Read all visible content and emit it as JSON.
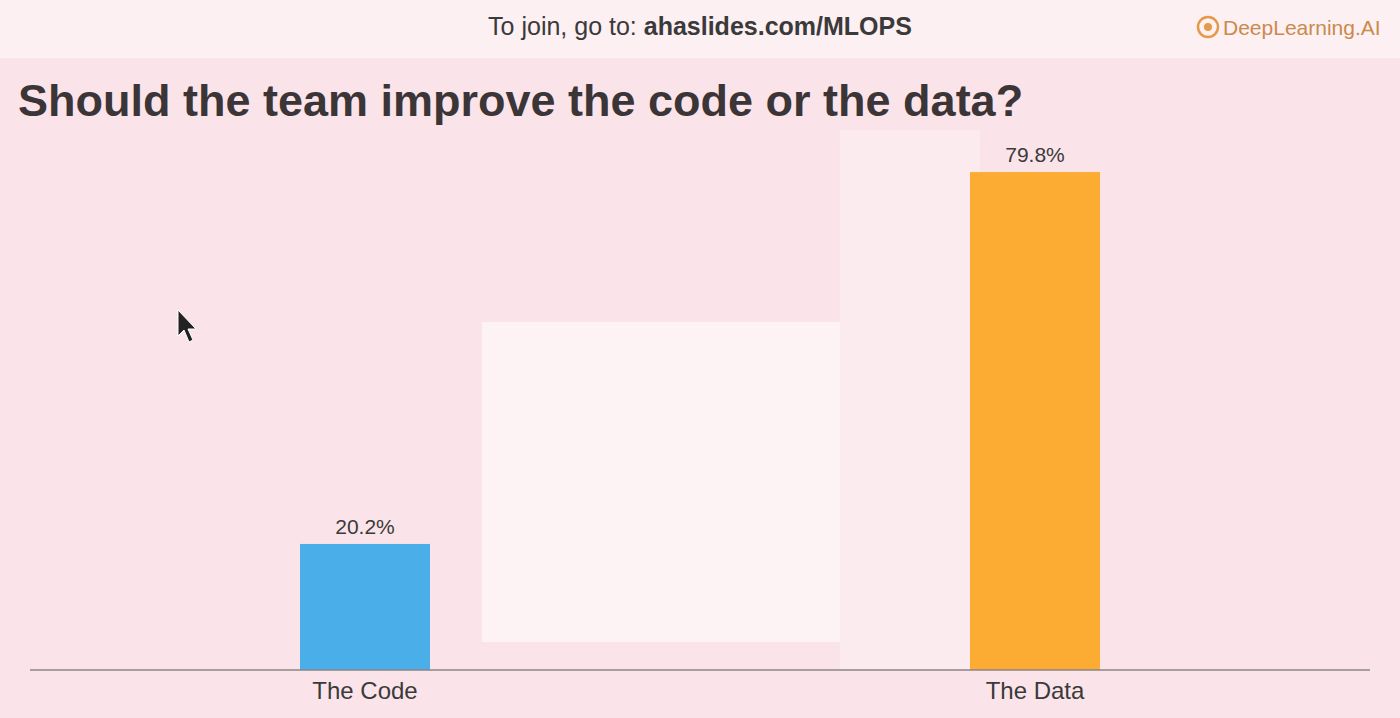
{
  "chart_data": {
    "type": "bar",
    "title": "Should the team improve the code or the data?",
    "annotations": [
      "To join, go to:",
      "ahaslides.com/MLOPS",
      "DeepLearning.AI"
    ],
    "categories": [
      "The Code",
      "The Data"
    ],
    "values": [
      20.2,
      79.8
    ],
    "value_labels": [
      "20.2%",
      "79.8%"
    ],
    "colors": [
      "#4aafe8",
      "#fdac33"
    ],
    "ylim": [
      0,
      100
    ],
    "data_labels": true,
    "tick_labels": "x",
    "grid": false
  }
}
